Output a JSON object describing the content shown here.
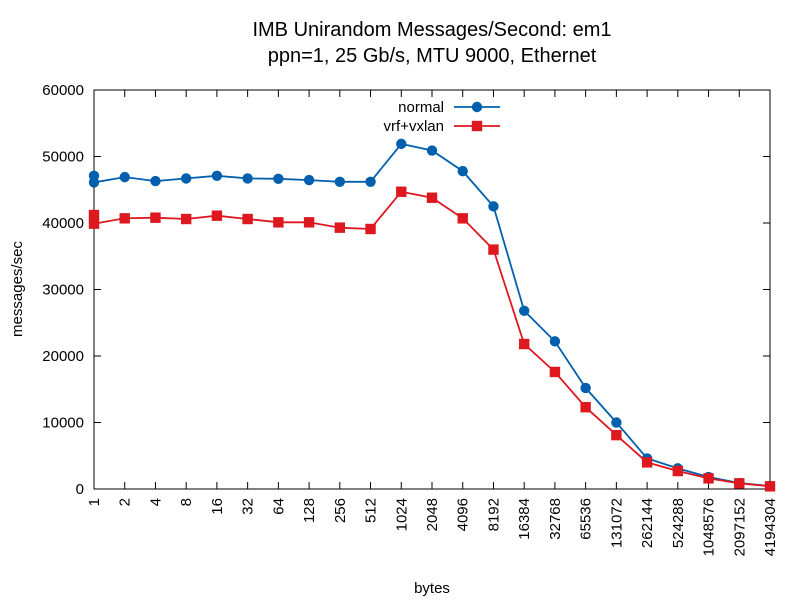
{
  "chart_data": {
    "type": "line",
    "title": "IMB Unirandom Messages/Second: em1",
    "subtitle": "ppn=1, 25 Gb/s, MTU 9000, Ethernet",
    "xlabel": "bytes",
    "ylabel": "messages/sec",
    "ylim": [
      0,
      60000
    ],
    "yticks": [
      0,
      10000,
      20000,
      30000,
      40000,
      50000,
      60000
    ],
    "categories": [
      "1",
      "2",
      "4",
      "8",
      "16",
      "32",
      "64",
      "128",
      "256",
      "512",
      "1024",
      "2048",
      "4096",
      "8192",
      "16384",
      "32768",
      "65536",
      "131072",
      "262144",
      "524288",
      "1048576",
      "2097152",
      "4194304"
    ],
    "legend_position": "top-center",
    "grid": false,
    "series": [
      {
        "name": "normal",
        "color": "#0060ad",
        "marker": "circle",
        "points": [
          {
            "x": "1",
            "y": 47100
          },
          {
            "x": "1",
            "y": 46100
          },
          {
            "x": "2",
            "y": 46900
          },
          {
            "x": "4",
            "y": 46300
          },
          {
            "x": "8",
            "y": 46700
          },
          {
            "x": "16",
            "y": 47100
          },
          {
            "x": "32",
            "y": 46700
          },
          {
            "x": "64",
            "y": 46650
          },
          {
            "x": "128",
            "y": 46450
          },
          {
            "x": "256",
            "y": 46200
          },
          {
            "x": "512",
            "y": 46200
          },
          {
            "x": "1024",
            "y": 51900
          },
          {
            "x": "2048",
            "y": 50900
          },
          {
            "x": "4096",
            "y": 47800
          },
          {
            "x": "8192",
            "y": 42500
          },
          {
            "x": "16384",
            "y": 26800
          },
          {
            "x": "32768",
            "y": 22200
          },
          {
            "x": "65536",
            "y": 15200
          },
          {
            "x": "131072",
            "y": 10000
          },
          {
            "x": "262144",
            "y": 4600
          },
          {
            "x": "524288",
            "y": 3100
          },
          {
            "x": "1048576",
            "y": 1800
          },
          {
            "x": "2097152",
            "y": 900
          },
          {
            "x": "4194304",
            "y": 450
          }
        ]
      },
      {
        "name": "vrf+vxlan",
        "color": "#dd181f",
        "marker": "square",
        "points": [
          {
            "x": "1",
            "y": 41200
          },
          {
            "x": "1",
            "y": 39900
          },
          {
            "x": "2",
            "y": 40700
          },
          {
            "x": "4",
            "y": 40800
          },
          {
            "x": "8",
            "y": 40600
          },
          {
            "x": "16",
            "y": 41100
          },
          {
            "x": "32",
            "y": 40600
          },
          {
            "x": "64",
            "y": 40100
          },
          {
            "x": "128",
            "y": 40100
          },
          {
            "x": "256",
            "y": 39300
          },
          {
            "x": "512",
            "y": 39100
          },
          {
            "x": "1024",
            "y": 44700
          },
          {
            "x": "2048",
            "y": 43800
          },
          {
            "x": "4096",
            "y": 40700
          },
          {
            "x": "8192",
            "y": 36000
          },
          {
            "x": "16384",
            "y": 21800
          },
          {
            "x": "32768",
            "y": 17600
          },
          {
            "x": "65536",
            "y": 12300
          },
          {
            "x": "131072",
            "y": 8100
          },
          {
            "x": "262144",
            "y": 4000
          },
          {
            "x": "524288",
            "y": 2700
          },
          {
            "x": "1048576",
            "y": 1600
          },
          {
            "x": "2097152",
            "y": 850
          },
          {
            "x": "4194304",
            "y": 400
          }
        ]
      }
    ]
  }
}
